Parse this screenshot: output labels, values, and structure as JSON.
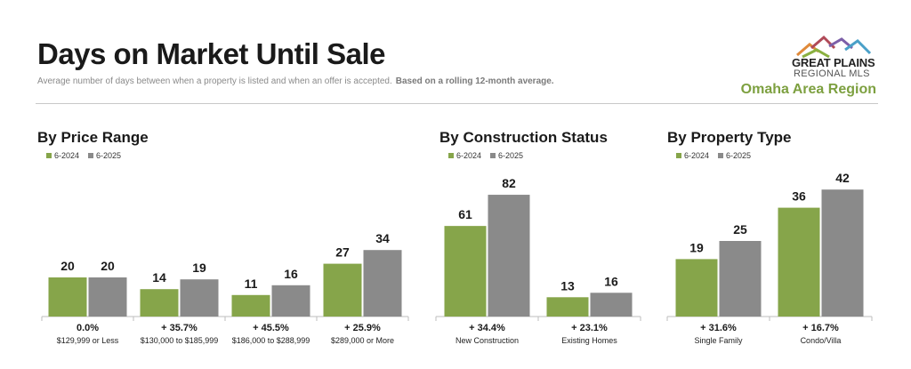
{
  "header": {
    "title": "Days on Market Until Sale",
    "subtitle": "Average number of days between when a property is listed and when an offer is accepted.",
    "subtitle_bold": "Based on a rolling 12-month average."
  },
  "logo": {
    "name": "GREAT PLAINS",
    "sub": "REGIONAL MLS",
    "region": "Omaha Area Region"
  },
  "colors": {
    "2024": "#86a54a",
    "2025": "#8a8a8a",
    "accent": "#7da040"
  },
  "chart_data": [
    {
      "type": "bar",
      "title": "By Price Range",
      "categories": [
        "$129,999 or Less",
        "$130,000 to $185,999",
        "$186,000 to $288,999",
        "$289,000 or More"
      ],
      "changes": [
        "0.0%",
        "+ 35.7%",
        "+ 45.5%",
        "+ 25.9%"
      ],
      "series": [
        {
          "name": "6-2024",
          "values": [
            20,
            14,
            11,
            27
          ]
        },
        {
          "name": "6-2025",
          "values": [
            20,
            19,
            16,
            34
          ]
        }
      ]
    },
    {
      "type": "bar",
      "title": "By Construction Status",
      "categories": [
        "New Construction",
        "Existing Homes"
      ],
      "changes": [
        "+ 34.4%",
        "+ 23.1%"
      ],
      "series": [
        {
          "name": "6-2024",
          "values": [
            61,
            13
          ]
        },
        {
          "name": "6-2025",
          "values": [
            82,
            16
          ]
        }
      ]
    },
    {
      "type": "bar",
      "title": "By Property Type",
      "categories": [
        "Single Family",
        "Condo/Villa"
      ],
      "changes": [
        "+ 31.6%",
        "+ 16.7%"
      ],
      "series": [
        {
          "name": "6-2024",
          "values": [
            19,
            36
          ]
        },
        {
          "name": "6-2025",
          "values": [
            25,
            42
          ]
        }
      ]
    }
  ]
}
